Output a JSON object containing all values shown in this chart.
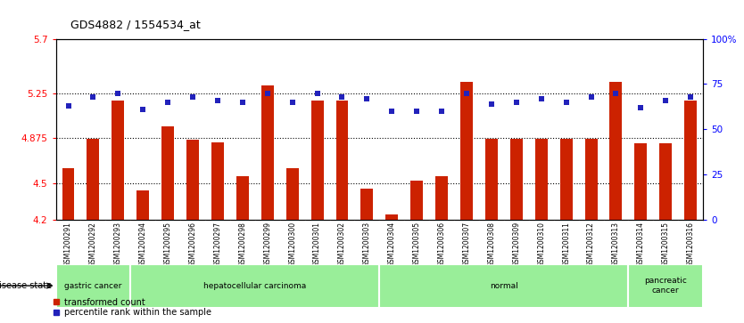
{
  "title": "GDS4882 / 1554534_at",
  "samples": [
    "GSM1200291",
    "GSM1200292",
    "GSM1200293",
    "GSM1200294",
    "GSM1200295",
    "GSM1200296",
    "GSM1200297",
    "GSM1200298",
    "GSM1200299",
    "GSM1200300",
    "GSM1200301",
    "GSM1200302",
    "GSM1200303",
    "GSM1200304",
    "GSM1200305",
    "GSM1200306",
    "GSM1200307",
    "GSM1200308",
    "GSM1200309",
    "GSM1200310",
    "GSM1200311",
    "GSM1200312",
    "GSM1200313",
    "GSM1200314",
    "GSM1200315",
    "GSM1200316"
  ],
  "bar_values": [
    4.63,
    4.87,
    5.19,
    4.44,
    4.97,
    4.86,
    4.84,
    4.56,
    5.31,
    4.63,
    5.19,
    5.19,
    4.46,
    4.24,
    4.52,
    4.56,
    5.34,
    4.87,
    4.87,
    4.87,
    4.87,
    4.87,
    5.34,
    4.83,
    4.83,
    5.19
  ],
  "percentile_values": [
    63,
    68,
    70,
    61,
    65,
    68,
    66,
    65,
    70,
    65,
    70,
    68,
    67,
    60,
    60,
    60,
    70,
    64,
    65,
    67,
    65,
    68,
    70,
    62,
    66,
    68
  ],
  "bar_color": "#cc2200",
  "percentile_color": "#2222bb",
  "ylim_left": [
    4.2,
    5.7
  ],
  "ylim_right": [
    0,
    100
  ],
  "yticks_left": [
    4.2,
    4.5,
    4.875,
    5.25,
    5.7
  ],
  "ytick_labels_left": [
    "4.2",
    "4.5",
    "4.875",
    "5.25",
    "5.7"
  ],
  "yticks_right": [
    0,
    25,
    50,
    75,
    100
  ],
  "ytick_labels_right": [
    "0",
    "25",
    "50",
    "75",
    "100%"
  ],
  "hlines": [
    4.5,
    4.875,
    5.25
  ],
  "disease_groups": [
    {
      "label": "gastric cancer",
      "start": 0,
      "end": 3
    },
    {
      "label": "hepatocellular carcinoma",
      "start": 3,
      "end": 13
    },
    {
      "label": "normal",
      "start": 13,
      "end": 23
    },
    {
      "label": "pancreatic\ncancer",
      "start": 23,
      "end": 26
    }
  ],
  "disease_state_label": "disease state",
  "legend_entries": [
    {
      "color": "#cc2200",
      "label": "transformed count"
    },
    {
      "color": "#2222bb",
      "label": "percentile rank within the sample"
    }
  ],
  "bg_color": "#ffffff",
  "tick_area_color": "#cccccc",
  "group_color": "#99ee99"
}
